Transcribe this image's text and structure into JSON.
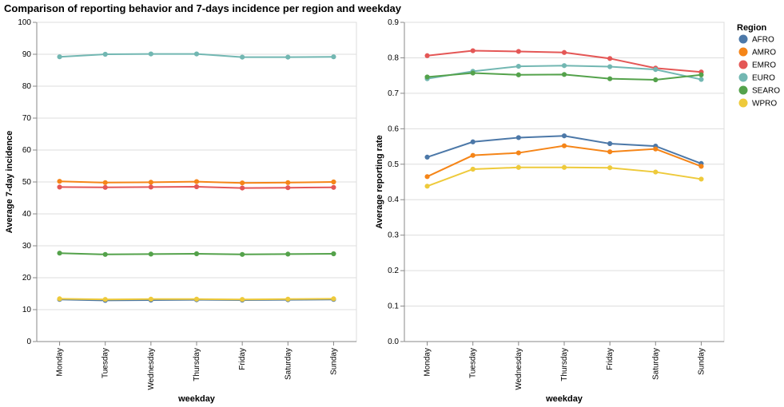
{
  "title": "Comparison of reporting behavior and 7-days incidence per region and weekday",
  "legend": {
    "title": "Region",
    "entries": [
      {
        "name": "AFRO",
        "color": "#4c78a8"
      },
      {
        "name": "AMRO",
        "color": "#f58518"
      },
      {
        "name": "EMRO",
        "color": "#e45756"
      },
      {
        "name": "EURO",
        "color": "#72b7b2"
      },
      {
        "name": "SEARO",
        "color": "#54a24b"
      },
      {
        "name": "WPRO",
        "color": "#eeca3b"
      }
    ]
  },
  "chart_data": [
    {
      "type": "line",
      "xlabel": "weekday",
      "ylabel": "Average 7-day incidence",
      "ylim": [
        0,
        100
      ],
      "yticks": [
        "0",
        "10",
        "20",
        "30",
        "40",
        "50",
        "60",
        "70",
        "80",
        "90",
        "100"
      ],
      "categories": [
        "Monday",
        "Tuesday",
        "Wednesday",
        "Thursday",
        "Friday",
        "Saturday",
        "Sunday"
      ],
      "grid": true,
      "series": [
        {
          "name": "AFRO",
          "color": "#4c78a8",
          "values": [
            13.2,
            12.9,
            13.0,
            13.1,
            13.0,
            13.1,
            13.2
          ]
        },
        {
          "name": "AMRO",
          "color": "#f58518",
          "values": [
            50.2,
            49.8,
            49.9,
            50.1,
            49.7,
            49.8,
            50.0
          ]
        },
        {
          "name": "EMRO",
          "color": "#e45756",
          "values": [
            48.4,
            48.3,
            48.4,
            48.5,
            48.1,
            48.2,
            48.3
          ]
        },
        {
          "name": "EURO",
          "color": "#72b7b2",
          "values": [
            89.2,
            90.0,
            90.1,
            90.1,
            89.1,
            89.1,
            89.2
          ]
        },
        {
          "name": "SEARO",
          "color": "#54a24b",
          "values": [
            27.7,
            27.3,
            27.4,
            27.5,
            27.3,
            27.4,
            27.5
          ]
        },
        {
          "name": "WPRO",
          "color": "#eeca3b",
          "values": [
            13.4,
            13.2,
            13.3,
            13.3,
            13.2,
            13.3,
            13.4
          ]
        }
      ]
    },
    {
      "type": "line",
      "xlabel": "weekday",
      "ylabel": "Average reporting rate",
      "ylim": [
        0,
        0.9
      ],
      "yticks": [
        "0.0",
        "0.1",
        "0.2",
        "0.3",
        "0.4",
        "0.5",
        "0.6",
        "0.7",
        "0.8",
        "0.9"
      ],
      "categories": [
        "Monday",
        "Tuesday",
        "Wednesday",
        "Thursday",
        "Friday",
        "Saturday",
        "Sunday"
      ],
      "grid": true,
      "series": [
        {
          "name": "AFRO",
          "color": "#4c78a8",
          "values": [
            0.52,
            0.563,
            0.575,
            0.58,
            0.558,
            0.551,
            0.502
          ]
        },
        {
          "name": "AMRO",
          "color": "#f58518",
          "values": [
            0.465,
            0.525,
            0.532,
            0.552,
            0.535,
            0.543,
            0.494
          ]
        },
        {
          "name": "EMRO",
          "color": "#e45756",
          "values": [
            0.806,
            0.82,
            0.818,
            0.815,
            0.798,
            0.771,
            0.76
          ]
        },
        {
          "name": "EURO",
          "color": "#72b7b2",
          "values": [
            0.741,
            0.762,
            0.776,
            0.778,
            0.775,
            0.767,
            0.739
          ]
        },
        {
          "name": "SEARO",
          "color": "#54a24b",
          "values": [
            0.746,
            0.757,
            0.752,
            0.753,
            0.741,
            0.738,
            0.752
          ]
        },
        {
          "name": "WPRO",
          "color": "#eeca3b",
          "values": [
            0.438,
            0.486,
            0.491,
            0.491,
            0.49,
            0.478,
            0.458
          ]
        }
      ]
    }
  ]
}
